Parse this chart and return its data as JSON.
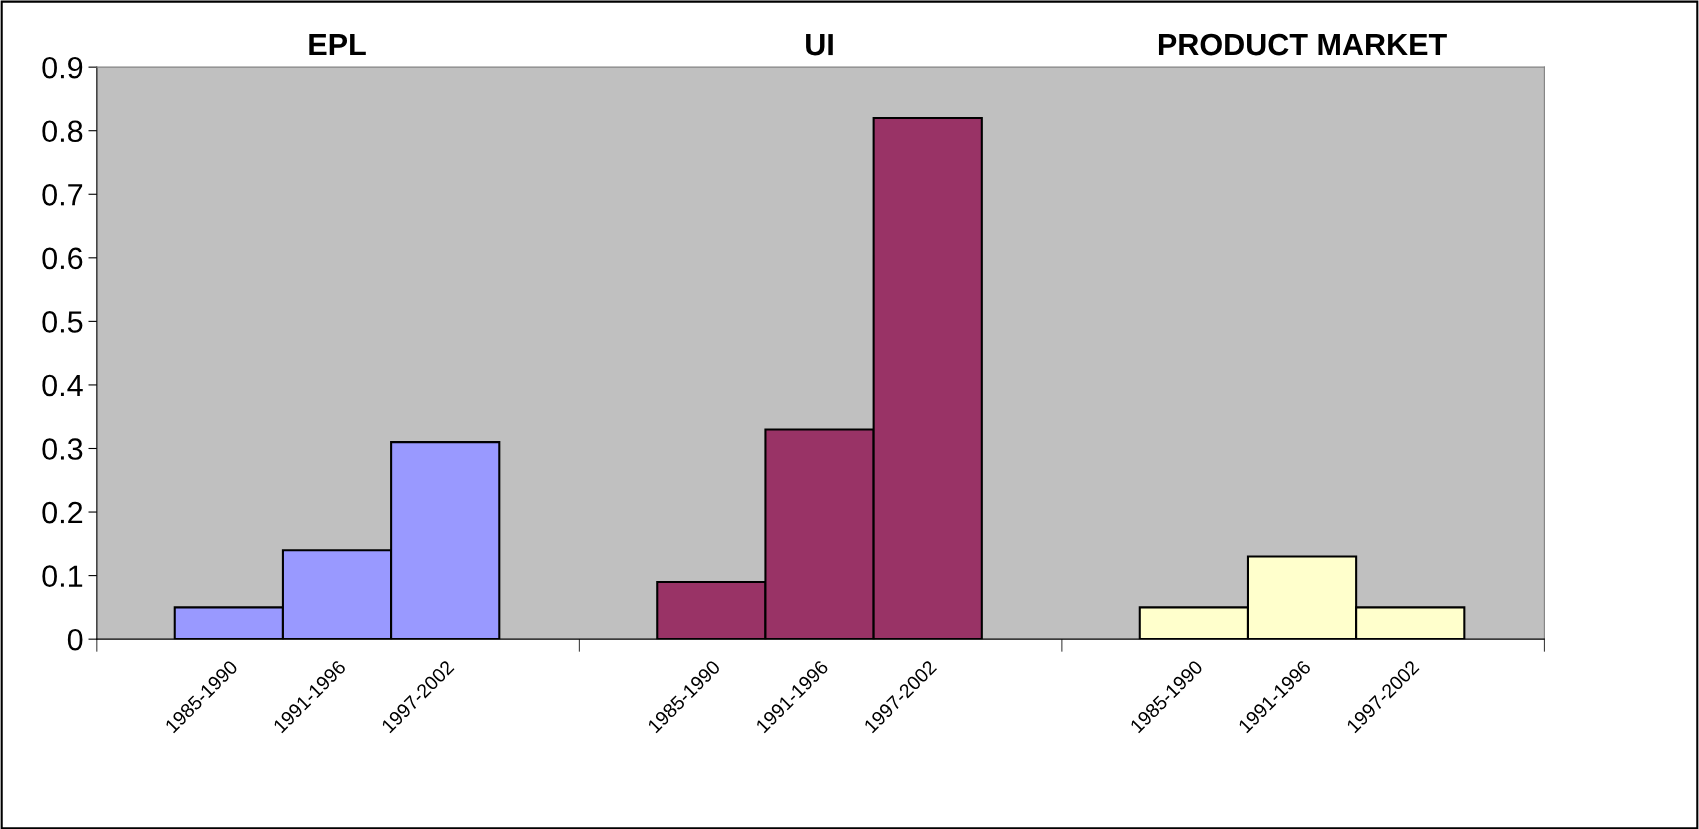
{
  "chart_data": {
    "type": "bar",
    "categories": [
      "1985-1990",
      "1991-1996",
      "1997-2002",
      "1985-1990",
      "1991-1996",
      "1997-2002",
      "1985-1990",
      "1991-1996",
      "1997-2002"
    ],
    "values": [
      0.05,
      0.14,
      0.31,
      0.09,
      0.33,
      0.82,
      0.05,
      0.13,
      0.05
    ],
    "colors": [
      "#9999ff",
      "#9999ff",
      "#9999ff",
      "#993366",
      "#993366",
      "#993366",
      "#ffffcc",
      "#ffffcc",
      "#ffffcc"
    ],
    "annotations": [
      "EPL",
      "UI",
      "PRODUCT MARKET"
    ],
    "ylim": [
      0,
      0.9
    ],
    "yticks": [
      {
        "value": 0,
        "label": "0"
      },
      0.1,
      0.2,
      0.3,
      0.4,
      0.5,
      0.6,
      0.7,
      0.8,
      0.9
    ],
    "grid": false,
    "legend": false
  }
}
